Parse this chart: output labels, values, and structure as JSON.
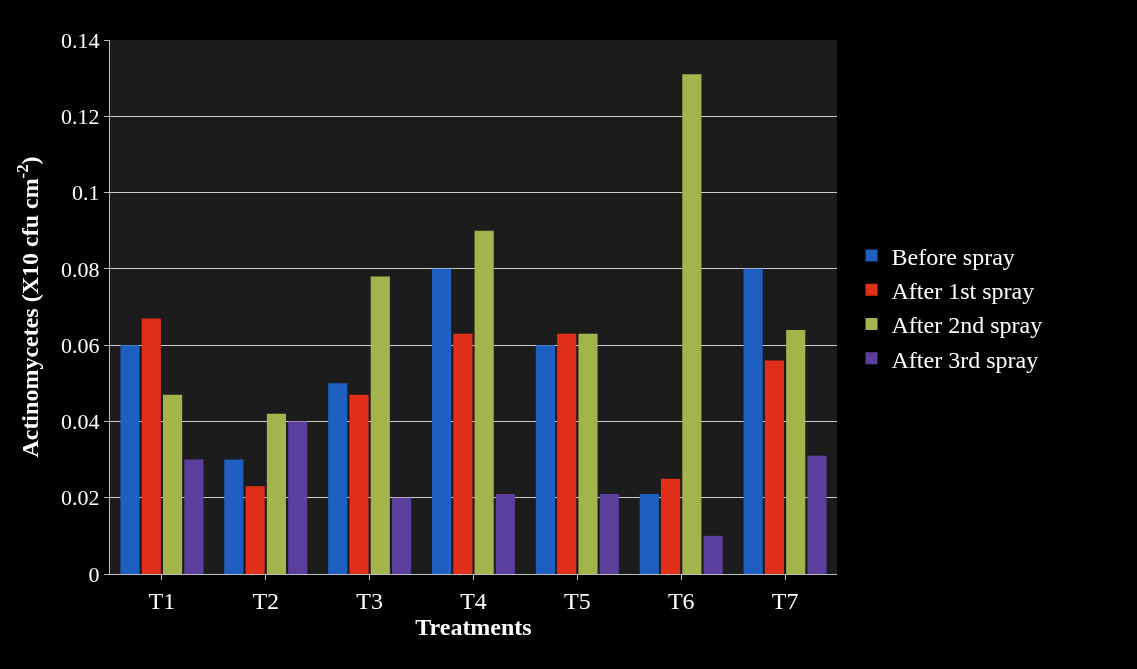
{
  "chart_data": {
    "type": "bar",
    "xlabel": "Treatments",
    "ylabel": "Actinomycetes (X10 cfu cm$^{-2}$)",
    "categories": [
      "T1",
      "T2",
      "T3",
      "T4",
      "T5",
      "T6",
      "T7"
    ],
    "series": [
      {
        "name": "Before spray",
        "color": "#1f5fc0",
        "values": [
          0.06,
          0.03,
          0.05,
          0.08,
          0.06,
          0.021,
          0.08
        ]
      },
      {
        "name": "After 1st spray",
        "color": "#e0301a",
        "values": [
          0.067,
          0.023,
          0.047,
          0.063,
          0.063,
          0.025,
          0.056
        ]
      },
      {
        "name": "After 2nd spray",
        "color": "#a3b44c",
        "values": [
          0.047,
          0.042,
          0.078,
          0.09,
          0.063,
          0.131,
          0.064
        ]
      },
      {
        "name": "After 3rd spray",
        "color": "#5b3f9c",
        "values": [
          0.03,
          0.04,
          0.02,
          0.021,
          0.021,
          0.01,
          0.031
        ]
      }
    ],
    "ylim": [
      0,
      0.14
    ],
    "yticks": [
      0,
      0.02,
      0.04,
      0.06,
      0.08,
      0.1,
      0.12,
      0.14
    ],
    "grid": "y",
    "legend": "right"
  }
}
